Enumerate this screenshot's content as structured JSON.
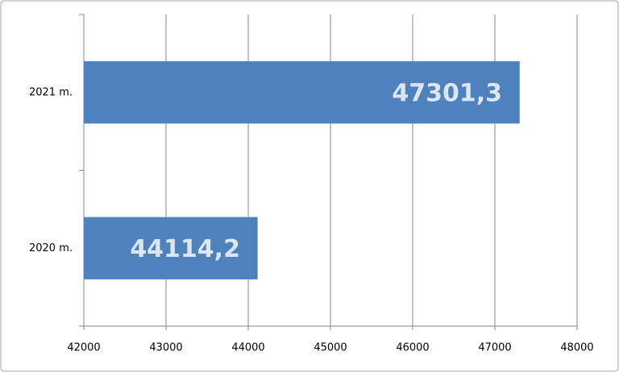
{
  "chart_data": {
    "type": "bar",
    "orientation": "horizontal",
    "categories": [
      "2021 m.",
      "2020 m."
    ],
    "values": [
      47301.3,
      44114.2
    ],
    "value_labels": [
      "47301,3",
      "44114,2"
    ],
    "color": "#4f81bd",
    "xlim": [
      42000,
      48000
    ],
    "xticks": [
      42000,
      43000,
      44000,
      45000,
      46000,
      47000,
      48000
    ],
    "grid": true
  }
}
